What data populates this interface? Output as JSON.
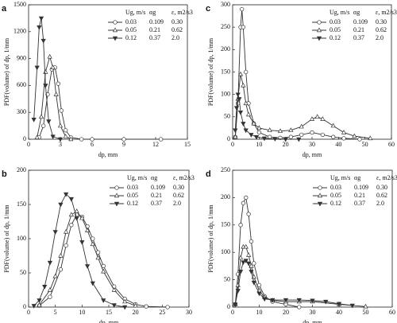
{
  "chart_data": [
    {
      "type": "line",
      "label": "a",
      "ylabel": "PDF(volume) of dp, 1/mm",
      "xlabel": "dp, mm",
      "xlim": [
        0,
        15
      ],
      "xticks": [
        0,
        3,
        6,
        9,
        12,
        15
      ],
      "ylim": [
        0,
        1500
      ],
      "yticks": [
        0,
        300,
        600,
        900,
        1200,
        1500
      ],
      "legend": "upper right",
      "legend_header": [
        "Ug, m/s",
        "αg",
        "ε, m2/s3"
      ],
      "series": [
        {
          "name": "0.03",
          "legend_cols": [
            "0.109",
            "0.30"
          ],
          "color": "#333",
          "marker": "circle",
          "filled": false,
          "x": [
            1.0,
            1.4,
            1.8,
            2.2,
            2.5,
            2.8,
            3.1,
            3.5,
            4,
            5,
            6,
            9,
            12.5
          ],
          "values": [
            20,
            150,
            500,
            780,
            800,
            620,
            320,
            100,
            20,
            0,
            0,
            0,
            0
          ]
        },
        {
          "name": "0.05",
          "legend_cols": [
            "0.21",
            "0.62"
          ],
          "color": "#333",
          "marker": "triangle-up",
          "filled": false,
          "x": [
            0.8,
            1.2,
            1.6,
            2.0,
            2.3,
            2.6,
            3.0,
            3.5,
            4
          ],
          "values": [
            20,
            250,
            750,
            920,
            800,
            500,
            150,
            30,
            0
          ]
        },
        {
          "name": "0.12",
          "legend_cols": [
            "0.37",
            "2.0"
          ],
          "color": "#333",
          "marker": "triangle-down",
          "filled": true,
          "x": [
            0.5,
            0.8,
            1.0,
            1.2,
            1.4,
            1.6,
            1.9,
            2.3,
            3
          ],
          "values": [
            220,
            800,
            1250,
            1350,
            1100,
            600,
            200,
            30,
            0
          ]
        }
      ]
    },
    {
      "type": "line",
      "label": "b",
      "ylabel": "PDF(volume) of dp, 1/mm",
      "xlabel": "dp, mm",
      "xlim": [
        0,
        30
      ],
      "xticks": [
        0,
        5,
        10,
        15,
        20,
        25,
        30
      ],
      "ylim": [
        0,
        200
      ],
      "yticks": [
        0,
        50,
        100,
        150,
        200
      ],
      "legend": "upper right",
      "legend_header": [
        "Ug, m/s",
        "αg",
        "ε, m2/s3"
      ],
      "series": [
        {
          "name": "0.03",
          "legend_cols": [
            "0.109",
            "0.30"
          ],
          "color": "#333",
          "marker": "circle",
          "filled": false,
          "x": [
            2,
            4,
            6,
            7,
            8,
            9,
            10,
            11,
            12,
            13,
            14,
            16,
            18,
            20,
            22,
            26
          ],
          "values": [
            2,
            15,
            55,
            90,
            120,
            135,
            132,
            118,
            100,
            80,
            60,
            30,
            12,
            4,
            1,
            0
          ]
        },
        {
          "name": "0.05",
          "legend_cols": [
            "0.21",
            "0.62"
          ],
          "color": "#333",
          "marker": "triangle-up",
          "filled": false,
          "x": [
            2,
            4,
            5,
            6,
            7,
            8,
            9,
            10,
            11,
            12,
            13,
            14,
            16,
            18,
            20
          ],
          "values": [
            3,
            25,
            45,
            75,
            110,
            135,
            140,
            130,
            112,
            92,
            72,
            52,
            25,
            8,
            2
          ]
        },
        {
          "name": "0.12",
          "legend_cols": [
            "0.37",
            "2.0"
          ],
          "color": "#333",
          "marker": "triangle-down",
          "filled": true,
          "x": [
            1,
            2,
            3,
            4,
            5,
            6,
            7,
            8,
            9,
            10,
            11,
            12,
            14,
            16,
            18
          ],
          "values": [
            2,
            10,
            30,
            65,
            110,
            150,
            165,
            158,
            130,
            95,
            60,
            35,
            10,
            3,
            0
          ]
        }
      ]
    },
    {
      "type": "line",
      "label": "c",
      "ylabel": "PDF(volume) of dp, 1/mm",
      "xlabel": "dp, mm",
      "xlim": [
        0,
        60
      ],
      "xticks": [
        0,
        10,
        20,
        30,
        40,
        50,
        60
      ],
      "ylim": [
        0,
        300
      ],
      "yticks": [
        0,
        50,
        100,
        150,
        200,
        250,
        300
      ],
      "legend": "upper right",
      "legend_header": [
        "Ug, m/s",
        "αg",
        "ε, m2/s3"
      ],
      "series": [
        {
          "name": "0.03",
          "legend_cols": [
            "0.109",
            "0.30"
          ],
          "color": "#333",
          "marker": "circle",
          "filled": false,
          "x": [
            1,
            2,
            3,
            3.5,
            4,
            5,
            6,
            8,
            10,
            14,
            18,
            22,
            26,
            30,
            34,
            38,
            42,
            48
          ],
          "values": [
            5,
            80,
            250,
            290,
            250,
            150,
            80,
            35,
            15,
            5,
            3,
            5,
            10,
            15,
            10,
            5,
            2,
            0
          ]
        },
        {
          "name": "0.05",
          "legend_cols": [
            "0.21",
            "0.62"
          ],
          "color": "#333",
          "marker": "triangle-up",
          "filled": false,
          "x": [
            1,
            2,
            3,
            4,
            5,
            6,
            8,
            10,
            14,
            18,
            22,
            26,
            30,
            32,
            34,
            38,
            42,
            46,
            52
          ],
          "values": [
            5,
            90,
            145,
            120,
            80,
            55,
            35,
            25,
            20,
            18,
            20,
            28,
            45,
            50,
            45,
            30,
            15,
            7,
            2
          ]
        },
        {
          "name": "0.12",
          "legend_cols": [
            "0.37",
            "2.0"
          ],
          "color": "#333",
          "marker": "triangle-down",
          "filled": true,
          "x": [
            1,
            1.5,
            2,
            2.5,
            3,
            4,
            5,
            7,
            9,
            12,
            16,
            20,
            25
          ],
          "values": [
            20,
            70,
            100,
            90,
            60,
            35,
            20,
            10,
            5,
            2,
            1,
            0,
            0
          ]
        }
      ]
    },
    {
      "type": "line",
      "label": "d",
      "ylabel": "PDF(volume) of dp, 1/mm",
      "xlabel": "dp, mm",
      "xlim": [
        0,
        60
      ],
      "xticks": [
        0,
        10,
        20,
        30,
        40,
        50,
        60
      ],
      "ylim": [
        0,
        250
      ],
      "yticks": [
        0,
        50,
        100,
        150,
        200,
        250
      ],
      "legend": "upper right",
      "legend_header": [
        "Ug, m/s",
        "αg",
        "ε, m2/s3"
      ],
      "series": [
        {
          "name": "0.03",
          "legend_cols": [
            "0.109",
            "0.30"
          ],
          "color": "#333",
          "marker": "circle",
          "filled": false,
          "x": [
            1,
            2,
            3,
            4,
            5,
            6,
            7,
            8,
            10,
            12,
            15,
            20,
            25
          ],
          "values": [
            5,
            60,
            150,
            190,
            200,
            170,
            120,
            80,
            40,
            20,
            10,
            5,
            0
          ]
        },
        {
          "name": "0.05",
          "legend_cols": [
            "0.21",
            "0.62"
          ],
          "color": "#333",
          "marker": "triangle-up",
          "filled": false,
          "x": [
            1,
            2,
            3,
            4,
            5,
            6,
            7,
            8,
            10,
            12,
            15,
            20,
            25,
            30,
            40,
            50
          ],
          "values": [
            5,
            40,
            90,
            110,
            110,
            95,
            75,
            55,
            30,
            18,
            12,
            10,
            10,
            10,
            5,
            1
          ]
        },
        {
          "name": "0.12",
          "legend_cols": [
            "0.37",
            "2.0"
          ],
          "color": "#333",
          "marker": "triangle-down",
          "filled": true,
          "x": [
            1,
            2,
            3,
            4,
            5,
            6,
            7,
            8,
            10,
            12,
            15,
            20,
            25,
            30,
            35,
            40,
            45
          ],
          "values": [
            5,
            30,
            65,
            82,
            85,
            80,
            65,
            45,
            25,
            15,
            13,
            13,
            13,
            12,
            10,
            6,
            3
          ]
        }
      ]
    }
  ]
}
